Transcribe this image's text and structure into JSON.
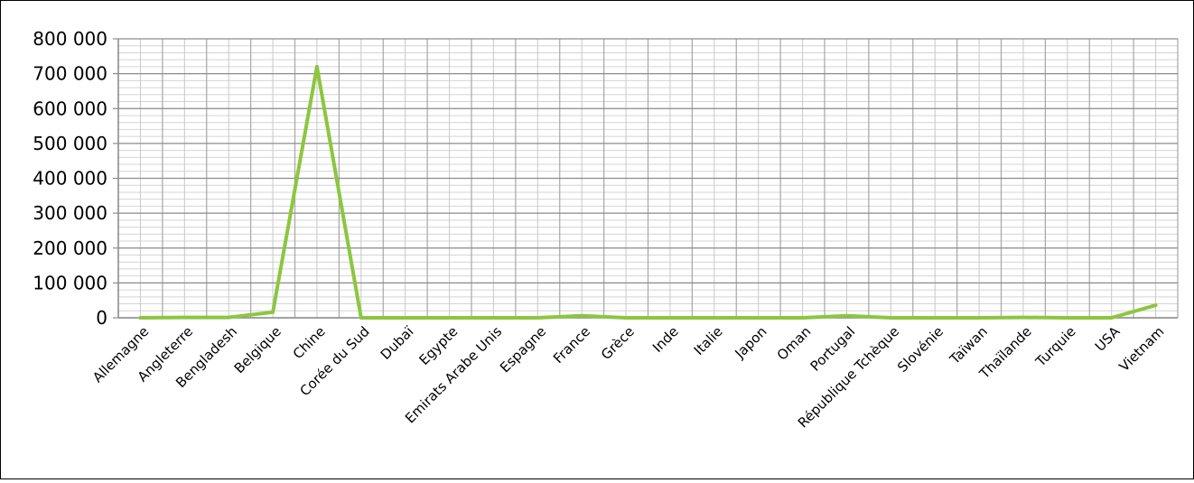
{
  "chart_data": {
    "type": "line",
    "categories": [
      "Allemagne",
      "Angleterre",
      "Bengladesh",
      "Belgique",
      "Chine",
      "Corée du Sud",
      "Dubaï",
      "Egypte",
      "Emirats Arabe Unis",
      "Espagne",
      "France",
      "Grèce",
      "Inde",
      "Italie",
      "Japon",
      "Oman",
      "Portugal",
      "République Tchèque",
      "Slovénie",
      "Taïwan",
      "Thaïlande",
      "Turquie",
      "USA",
      "Vietnam"
    ],
    "series": [
      {
        "values": [
          0,
          1000,
          1000,
          16000,
          720000,
          0,
          0,
          0,
          0,
          0,
          6000,
          0,
          0,
          0,
          0,
          0,
          6000,
          0,
          0,
          0,
          1000,
          0,
          0,
          36000
        ],
        "color": "#8cc63e"
      }
    ],
    "ylim": [
      0,
      800000
    ],
    "yticks": [
      0,
      100000,
      200000,
      300000,
      400000,
      500000,
      600000,
      700000,
      800000
    ],
    "ytick_labels": [
      "0",
      "100 000",
      "200 000",
      "300 000",
      "400 000",
      "500 000",
      "600 000",
      "700 000",
      "800 000"
    ],
    "grid": true,
    "legend": "none"
  }
}
